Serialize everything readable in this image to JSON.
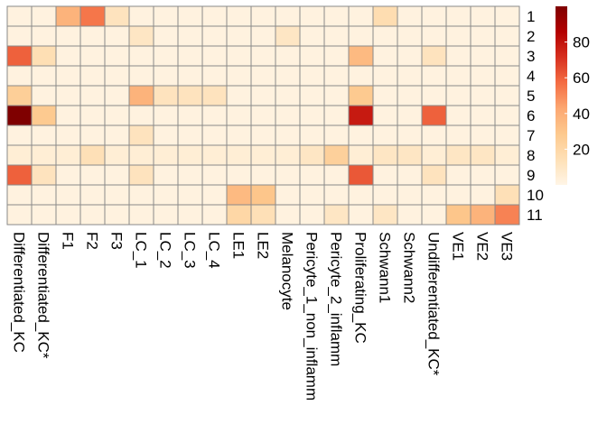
{
  "chart_data": {
    "type": "heatmap",
    "title": "",
    "xlabel": "",
    "ylabel": "",
    "columns": [
      "Differentiated_KC",
      "Differentiated_KC*",
      "F1",
      "F2",
      "F3",
      "LC_1",
      "LC_2",
      "LC_3",
      "LC_4",
      "LE1",
      "LE2",
      "Melanocyte",
      "Pericyte_1_non_inflamm",
      "Pericyte_2_inflamm",
      "Proliferating_KC",
      "Schwann1",
      "Schwann2",
      "Undifferentiated_KC*",
      "VE1",
      "VE2",
      "VE3"
    ],
    "rows": [
      "1",
      "2",
      "3",
      "4",
      "5",
      "6",
      "7",
      "8",
      "9",
      "10",
      "11"
    ],
    "values": [
      [
        2,
        2,
        38,
        55,
        12,
        2,
        2,
        2,
        2,
        2,
        2,
        2,
        2,
        2,
        2,
        16,
        2,
        2,
        2,
        2,
        2
      ],
      [
        2,
        2,
        2,
        2,
        2,
        10,
        2,
        2,
        2,
        2,
        2,
        10,
        2,
        2,
        2,
        2,
        2,
        2,
        2,
        2,
        2
      ],
      [
        60,
        15,
        2,
        2,
        2,
        2,
        2,
        2,
        2,
        2,
        2,
        2,
        2,
        2,
        35,
        2,
        2,
        12,
        2,
        2,
        2
      ],
      [
        2,
        2,
        2,
        2,
        2,
        2,
        2,
        2,
        2,
        2,
        2,
        2,
        2,
        2,
        2,
        2,
        2,
        2,
        2,
        2,
        2
      ],
      [
        25,
        2,
        2,
        2,
        2,
        38,
        12,
        12,
        12,
        2,
        2,
        2,
        2,
        2,
        28,
        2,
        2,
        2,
        2,
        2,
        2
      ],
      [
        100,
        28,
        2,
        2,
        2,
        2,
        2,
        2,
        2,
        2,
        2,
        2,
        2,
        2,
        78,
        2,
        2,
        60,
        2,
        2,
        2
      ],
      [
        2,
        2,
        2,
        2,
        2,
        12,
        2,
        2,
        2,
        2,
        2,
        2,
        2,
        2,
        2,
        2,
        2,
        2,
        2,
        2,
        2
      ],
      [
        5,
        5,
        5,
        14,
        5,
        5,
        5,
        5,
        5,
        5,
        5,
        5,
        10,
        24,
        5,
        10,
        10,
        5,
        10,
        10,
        5
      ],
      [
        60,
        12,
        2,
        2,
        2,
        12,
        2,
        2,
        2,
        2,
        2,
        2,
        2,
        2,
        62,
        2,
        2,
        12,
        2,
        2,
        2
      ],
      [
        2,
        2,
        2,
        2,
        2,
        2,
        2,
        2,
        2,
        35,
        30,
        2,
        2,
        2,
        2,
        2,
        2,
        2,
        2,
        2,
        14
      ],
      [
        2,
        2,
        2,
        2,
        2,
        2,
        2,
        2,
        2,
        20,
        14,
        2,
        2,
        10,
        2,
        10,
        2,
        2,
        30,
        38,
        52
      ]
    ],
    "color_scale": {
      "min": 0,
      "max": 100,
      "ticks": [
        "20",
        "40",
        "60",
        "80"
      ],
      "tick_values": [
        20,
        40,
        60,
        80
      ],
      "stops": [
        "#FFF5E6",
        "#FEE0B6",
        "#FDC98E",
        "#FCA771",
        "#F46D43",
        "#D7301F",
        "#B30000",
        "#7F0000"
      ]
    },
    "grid": true,
    "legend": "right"
  }
}
